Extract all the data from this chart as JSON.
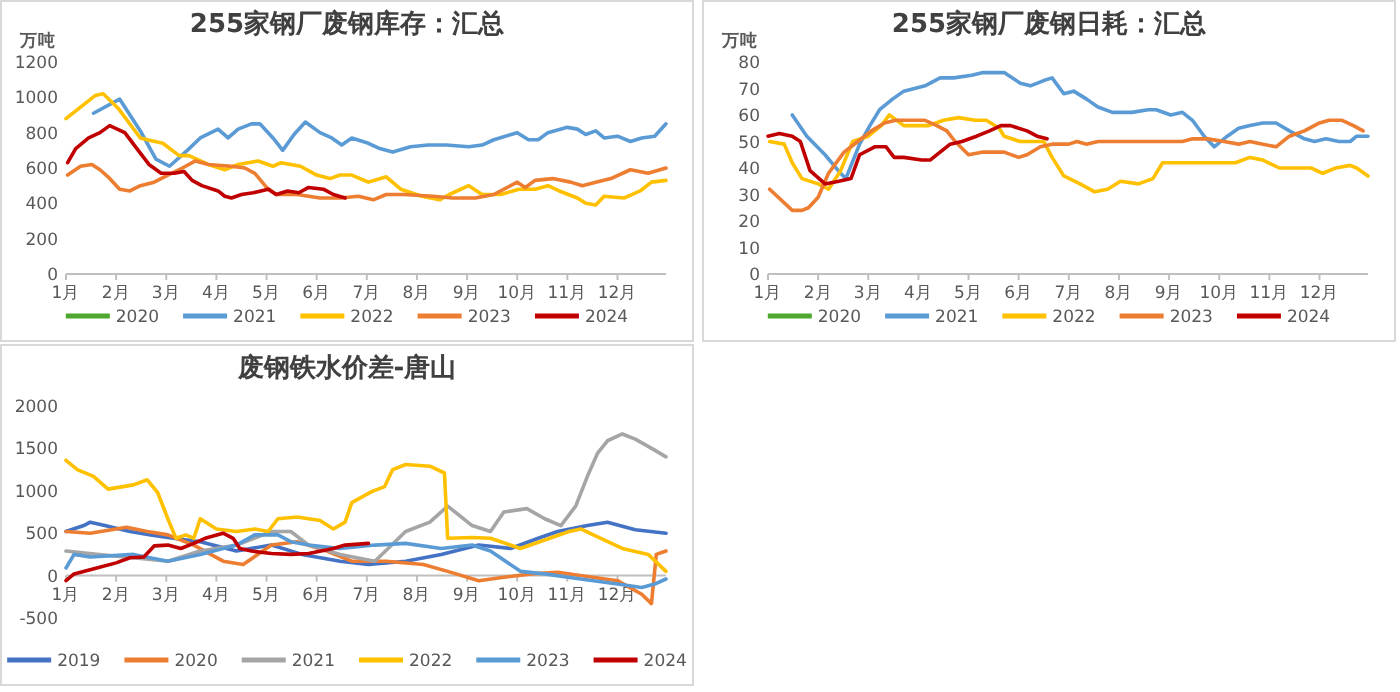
{
  "chart_data": [
    {
      "type": "line",
      "title": "255家钢厂废钢库存：汇总",
      "ylabel": "万吨",
      "legend": "bottom",
      "xlim": [
        "--01-01",
        "--12-31"
      ],
      "xticks": [
        {
          "value": "--01-01",
          "label": "1月"
        },
        {
          "value": "--02-01",
          "label": "2月"
        },
        {
          "value": "--03-01",
          "label": "3月"
        },
        {
          "value": "--04-01",
          "label": "4月"
        },
        {
          "value": "--05-01",
          "label": "5月"
        },
        {
          "value": "--06-01",
          "label": "6月"
        },
        {
          "value": "--07-01",
          "label": "7月"
        },
        {
          "value": "--08-01",
          "label": "8月"
        },
        {
          "value": "--09-01",
          "label": "9月"
        },
        {
          "value": "--10-01",
          "label": "10月"
        },
        {
          "value": "--11-01",
          "label": "11月"
        },
        {
          "value": "--12-01",
          "label": "12月"
        }
      ],
      "ylim": [
        0,
        1200
      ],
      "yticks": [
        0,
        200,
        400,
        600,
        800,
        1000,
        1200
      ],
      "series": [
        {
          "name": "2020",
          "color": "#4ea72e"
        },
        {
          "name": "2021",
          "color": "#5b9bd5",
          "x": [
            "--01-18",
            "--02-03",
            "--02-15",
            "--02-24",
            "--03-03",
            "--03-14",
            "--03-22",
            "--04-02",
            "--04-08",
            "--04-14",
            "--04-22",
            "--04-27",
            "--05-05",
            "--05-11",
            "--05-18",
            "--05-25",
            "--06-03",
            "--06-10",
            "--06-16",
            "--06-22",
            "--07-02",
            "--07-09",
            "--07-17",
            "--07-28",
            "--08-08",
            "--08-19",
            "--09-02",
            "--09-10",
            "--09-17",
            "--10-01",
            "--10-08",
            "--10-14",
            "--10-20",
            "--11-01",
            "--11-07",
            "--11-12",
            "--11-18",
            "--11-23",
            "--12-01",
            "--12-09",
            "--12-16",
            "--12-24",
            "--12-31"
          ],
          "values": [
            910,
            990,
            810,
            650,
            610,
            700,
            770,
            820,
            770,
            820,
            850,
            850,
            770,
            700,
            790,
            860,
            800,
            770,
            730,
            770,
            740,
            710,
            690,
            720,
            730,
            730,
            720,
            730,
            760,
            800,
            760,
            760,
            800,
            830,
            820,
            790,
            810,
            770,
            780,
            750,
            770,
            780,
            850
          ]
        },
        {
          "name": "2022",
          "color": "#ffc000",
          "x": [
            "--01-01",
            "--01-19",
            "--01-24",
            "--02-02",
            "--02-15",
            "--02-19",
            "--02-28",
            "--03-09",
            "--03-15",
            "--03-27",
            "--04-06",
            "--04-14",
            "--04-20",
            "--04-26",
            "--05-05",
            "--05-10",
            "--05-22",
            "--06-01",
            "--06-09",
            "--06-15",
            "--06-22",
            "--07-02",
            "--07-13",
            "--07-22",
            "--08-04",
            "--08-15",
            "--08-21",
            "--09-02",
            "--09-10",
            "--09-21",
            "--10-02",
            "--10-12",
            "--10-20",
            "--10-27",
            "--11-07",
            "--11-12",
            "--11-18",
            "--11-23",
            "--12-05",
            "--12-15",
            "--12-22",
            "--12-31"
          ],
          "values": [
            880,
            1010,
            1020,
            940,
            770,
            760,
            740,
            670,
            670,
            620,
            590,
            620,
            630,
            640,
            610,
            630,
            610,
            560,
            540,
            560,
            560,
            520,
            550,
            480,
            440,
            420,
            450,
            500,
            450,
            450,
            480,
            480,
            500,
            470,
            430,
            400,
            390,
            440,
            430,
            470,
            520,
            530
          ]
        },
        {
          "name": "2023",
          "color": "#ed7d31",
          "x": [
            "--01-02",
            "--01-10",
            "--01-17",
            "--01-22",
            "--01-27",
            "--02-03",
            "--02-09",
            "--02-15",
            "--02-23",
            "--03-02",
            "--03-11",
            "--03-19",
            "--03-27",
            "--04-10",
            "--04-18",
            "--04-24",
            "--05-01",
            "--05-07",
            "--05-12",
            "--05-20",
            "--06-03",
            "--06-15",
            "--06-26",
            "--07-05",
            "--07-13",
            "--07-24",
            "--08-11",
            "--08-23",
            "--09-06",
            "--09-17",
            "--10-01",
            "--10-06",
            "--10-12",
            "--10-23",
            "--11-03",
            "--11-10",
            "--11-18",
            "--11-27",
            "--12-09",
            "--12-20",
            "--12-31"
          ],
          "values": [
            560,
            610,
            620,
            590,
            550,
            480,
            470,
            500,
            520,
            560,
            600,
            640,
            620,
            610,
            600,
            570,
            490,
            450,
            450,
            450,
            430,
            430,
            440,
            420,
            450,
            450,
            440,
            430,
            430,
            450,
            520,
            490,
            530,
            540,
            520,
            500,
            520,
            540,
            590,
            570,
            600
          ]
        },
        {
          "name": "2024",
          "color": "#c00000",
          "x": [
            "--01-02",
            "--01-07",
            "--01-15",
            "--01-22",
            "--01-28",
            "--02-06",
            "--02-13",
            "--02-20",
            "--02-27",
            "--03-06",
            "--03-12",
            "--03-17",
            "--03-23",
            "--04-02",
            "--04-06",
            "--04-10",
            "--04-16",
            "--04-23",
            "--05-02",
            "--05-07",
            "--05-14",
            "--05-21",
            "--05-27",
            "--06-05",
            "--06-11",
            "--06-18"
          ],
          "values": [
            630,
            710,
            770,
            800,
            840,
            800,
            710,
            620,
            570,
            570,
            580,
            530,
            500,
            470,
            440,
            430,
            450,
            460,
            480,
            450,
            470,
            460,
            490,
            480,
            450,
            430
          ]
        }
      ]
    },
    {
      "type": "line",
      "title": "255家钢厂废钢日耗：汇总",
      "ylabel": "万吨",
      "legend": "bottom",
      "xlim": [
        "--01-01",
        "--12-31"
      ],
      "xticks": [
        {
          "value": "--01-01",
          "label": "1月"
        },
        {
          "value": "--02-01",
          "label": "2月"
        },
        {
          "value": "--03-01",
          "label": "3月"
        },
        {
          "value": "--04-01",
          "label": "4月"
        },
        {
          "value": "--05-01",
          "label": "5月"
        },
        {
          "value": "--06-01",
          "label": "6月"
        },
        {
          "value": "--07-01",
          "label": "7月"
        },
        {
          "value": "--08-01",
          "label": "8月"
        },
        {
          "value": "--09-01",
          "label": "9月"
        },
        {
          "value": "--10-01",
          "label": "10月"
        },
        {
          "value": "--11-01",
          "label": "11月"
        },
        {
          "value": "--12-01",
          "label": "12月"
        }
      ],
      "ylim": [
        0,
        80
      ],
      "yticks": [
        0,
        10,
        20,
        30,
        40,
        50,
        60,
        70,
        80
      ],
      "series": [
        {
          "name": "2020",
          "color": "#4ea72e"
        },
        {
          "name": "2021",
          "color": "#5b9bd5",
          "x": [
            "--01-16",
            "--01-25",
            "--02-05",
            "--02-14",
            "--02-17",
            "--02-25",
            "--03-02",
            "--03-08",
            "--03-16",
            "--03-23",
            "--04-05",
            "--04-14",
            "--04-22",
            "--05-03",
            "--05-10",
            "--05-18",
            "--05-23",
            "--06-02",
            "--06-08",
            "--06-16",
            "--06-21",
            "--06-28",
            "--07-04",
            "--07-12",
            "--07-19",
            "--07-28",
            "--08-09",
            "--08-19",
            "--08-24",
            "--09-02",
            "--09-09",
            "--09-15",
            "--09-22",
            "--09-28",
            "--10-06",
            "--10-13",
            "--10-20",
            "--10-28",
            "--11-05",
            "--11-13",
            "--11-22",
            "--11-28",
            "--12-05",
            "--12-13",
            "--12-20",
            "--12-24",
            "--12-31"
          ],
          "values": [
            60,
            52,
            45,
            38,
            36,
            49,
            56,
            62,
            66,
            69,
            71,
            74,
            74,
            75,
            76,
            76,
            76,
            72,
            71,
            73,
            74,
            68,
            69,
            66,
            63,
            61,
            61,
            62,
            62,
            60,
            61,
            58,
            52,
            48,
            52,
            55,
            56,
            57,
            57,
            54,
            51,
            50,
            51,
            50,
            50,
            52,
            52
          ]
        },
        {
          "name": "2022",
          "color": "#ffc000",
          "x": [
            "--01-02",
            "--01-11",
            "--01-16",
            "--01-22",
            "--02-01",
            "--02-07",
            "--02-14",
            "--02-21",
            "--03-01",
            "--03-09",
            "--03-14",
            "--03-23",
            "--04-07",
            "--04-16",
            "--04-25",
            "--05-05",
            "--05-12",
            "--05-20",
            "--05-23",
            "--06-02",
            "--06-10",
            "--06-16",
            "--06-21",
            "--06-28",
            "--07-08",
            "--07-17",
            "--07-25",
            "--08-02",
            "--08-13",
            "--08-22",
            "--08-28",
            "--09-09",
            "--09-19",
            "--10-02",
            "--10-11",
            "--10-20",
            "--10-28",
            "--11-07",
            "--11-20",
            "--11-26",
            "--12-03",
            "--12-11",
            "--12-20",
            "--12-24",
            "--12-31"
          ],
          "values": [
            50,
            49,
            42,
            36,
            34,
            32,
            39,
            50,
            52,
            56,
            60,
            56,
            56,
            58,
            59,
            58,
            58,
            55,
            52,
            50,
            50,
            50,
            44,
            37,
            34,
            31,
            32,
            35,
            34,
            36,
            42,
            42,
            42,
            42,
            42,
            44,
            43,
            40,
            40,
            40,
            38,
            40,
            41,
            40,
            37
          ]
        },
        {
          "name": "2023",
          "color": "#ed7d31",
          "x": [
            "--01-02",
            "--01-09",
            "--01-16",
            "--01-22",
            "--01-26",
            "--02-01",
            "--02-07",
            "--02-16",
            "--02-24",
            "--03-03",
            "--03-11",
            "--03-18",
            "--03-25",
            "--04-05",
            "--04-12",
            "--04-18",
            "--04-23",
            "--05-01",
            "--05-10",
            "--05-20",
            "--05-23",
            "--06-01",
            "--06-06",
            "--06-14",
            "--06-21",
            "--07-01",
            "--07-06",
            "--07-12",
            "--07-19",
            "--07-28",
            "--08-09",
            "--08-21",
            "--08-28",
            "--09-09",
            "--09-15",
            "--09-24",
            "--10-04",
            "--10-13",
            "--10-20",
            "--10-28",
            "--11-05",
            "--11-13",
            "--11-22",
            "--12-01",
            "--12-07",
            "--12-15",
            "--12-22",
            "--12-28"
          ],
          "values": [
            32,
            28,
            24,
            24,
            25,
            29,
            38,
            46,
            50,
            54,
            57,
            58,
            58,
            58,
            56,
            54,
            50,
            45,
            46,
            46,
            46,
            44,
            45,
            48,
            49,
            49,
            50,
            49,
            50,
            50,
            50,
            50,
            50,
            50,
            51,
            51,
            50,
            49,
            50,
            49,
            48,
            52,
            54,
            57,
            58,
            58,
            56,
            54
          ]
        },
        {
          "name": "2024",
          "color": "#c00000",
          "x": [
            "--01-01",
            "--01-08",
            "--01-16",
            "--01-21",
            "--01-27",
            "--02-05",
            "--02-13",
            "--02-20",
            "--02-25",
            "--03-05",
            "--03-12",
            "--03-17",
            "--03-23",
            "--04-03",
            "--04-08",
            "--04-14",
            "--04-20",
            "--04-27",
            "--05-06",
            "--05-14",
            "--05-21",
            "--05-27",
            "--06-06",
            "--06-12",
            "--06-18"
          ],
          "values": [
            52,
            53,
            52,
            50,
            39,
            34,
            35,
            36,
            45,
            48,
            48,
            44,
            44,
            43,
            43,
            46,
            49,
            50,
            52,
            54,
            56,
            56,
            54,
            52,
            51
          ]
        }
      ]
    },
    {
      "type": "line",
      "title": "废钢铁水价差-唐山",
      "legend": "bottom",
      "xlim": [
        "--01-01",
        "--12-31"
      ],
      "xticks": [
        {
          "value": "--01-01",
          "label": "1月"
        },
        {
          "value": "--02-01",
          "label": "2月"
        },
        {
          "value": "--03-01",
          "label": "3月"
        },
        {
          "value": "--04-01",
          "label": "4月"
        },
        {
          "value": "--05-01",
          "label": "5月"
        },
        {
          "value": "--06-01",
          "label": "6月"
        },
        {
          "value": "--07-01",
          "label": "7月"
        },
        {
          "value": "--08-01",
          "label": "8月"
        },
        {
          "value": "--09-01",
          "label": "9月"
        },
        {
          "value": "--10-01",
          "label": "10月"
        },
        {
          "value": "--11-01",
          "label": "11月"
        },
        {
          "value": "--12-01",
          "label": "12月"
        }
      ],
      "ylim": [
        -500,
        2000
      ],
      "yticks": [
        -500,
        0,
        500,
        1000,
        1500,
        2000
      ],
      "series": [
        {
          "name": "2019",
          "color": "#4472c4",
          "x": [
            "--01-01",
            "--01-12",
            "--01-16",
            "--01-25",
            "--02-09",
            "--02-21",
            "--03-02",
            "--03-22",
            "--04-13",
            "--05-04",
            "--05-23",
            "--06-15",
            "--07-02",
            "--07-25",
            "--08-16",
            "--09-08",
            "--09-27",
            "--10-14",
            "--10-26",
            "--11-13",
            "--11-25",
            "--12-12",
            "--12-31"
          ],
          "values": [
            520,
            590,
            630,
            590,
            520,
            480,
            450,
            400,
            290,
            360,
            250,
            170,
            130,
            170,
            250,
            360,
            320,
            440,
            520,
            590,
            630,
            540,
            500
          ]
        },
        {
          "name": "2020",
          "color": "#ed7d31",
          "x": [
            "--01-01",
            "--01-16",
            "--02-07",
            "--02-19",
            "--03-02",
            "--03-18",
            "--04-05",
            "--04-17",
            "--05-04",
            "--05-20",
            "--06-07",
            "--06-22",
            "--07-13",
            "--08-05",
            "--08-20",
            "--09-08",
            "--09-23",
            "--10-10",
            "--10-26",
            "--11-13",
            "--12-01",
            "--12-16",
            "--12-22",
            "--12-25",
            "--12-31"
          ],
          "values": [
            520,
            500,
            570,
            520,
            480,
            360,
            170,
            130,
            360,
            400,
            290,
            170,
            170,
            130,
            50,
            -60,
            -20,
            20,
            40,
            -10,
            -60,
            -220,
            -330,
            250,
            290
          ]
        },
        {
          "name": "2021",
          "color": "#a5a5a5",
          "x": [
            "--01-01",
            "--01-20",
            "--02-11",
            "--03-02",
            "--03-22",
            "--04-13",
            "--05-04",
            "--05-16",
            "--05-27",
            "--06-15",
            "--07-06",
            "--07-25",
            "--08-09",
            "--08-20",
            "--09-04",
            "--09-15",
            "--09-23",
            "--10-07",
            "--10-18",
            "--10-28",
            "--11-06",
            "--11-13",
            "--11-19",
            "--11-25",
            "--12-04",
            "--12-12",
            "--12-24",
            "--12-31"
          ],
          "values": [
            290,
            250,
            210,
            170,
            290,
            360,
            520,
            520,
            360,
            250,
            170,
            520,
            630,
            820,
            590,
            520,
            750,
            790,
            670,
            590,
            820,
            1170,
            1440,
            1590,
            1670,
            1610,
            1480,
            1400
          ]
        },
        {
          "name": "2022",
          "color": "#ffc000",
          "x": [
            "--01-01",
            "--01-08",
            "--01-18",
            "--01-27",
            "--02-11",
            "--02-19",
            "--02-25",
            "--03-02",
            "--03-07",
            "--03-13",
            "--03-18",
            "--03-22",
            "--04-01",
            "--04-13",
            "--04-24",
            "--05-02",
            "--05-08",
            "--05-20",
            "--06-03",
            "--06-11",
            "--06-18",
            "--06-22",
            "--07-04",
            "--07-12",
            "--07-17",
            "--07-25",
            "--08-09",
            "--08-18",
            "--08-20",
            "--09-04",
            "--09-15",
            "--10-03",
            "--10-18",
            "--11-02",
            "--11-09",
            "--11-21",
            "--12-04",
            "--12-20",
            "--12-31"
          ],
          "values": [
            1360,
            1250,
            1170,
            1020,
            1070,
            1130,
            980,
            670,
            440,
            480,
            440,
            670,
            550,
            520,
            550,
            520,
            670,
            690,
            650,
            550,
            630,
            860,
            990,
            1050,
            1250,
            1310,
            1290,
            1210,
            440,
            450,
            440,
            320,
            420,
            520,
            550,
            440,
            320,
            250,
            50
          ]
        },
        {
          "name": "2023",
          "color": "#5b9bd5",
          "x": [
            "--01-01",
            "--01-06",
            "--01-16",
            "--02-11",
            "--03-02",
            "--03-22",
            "--04-13",
            "--04-24",
            "--05-08",
            "--05-16",
            "--05-27",
            "--06-15",
            "--07-06",
            "--07-25",
            "--08-16",
            "--09-04",
            "--09-15",
            "--10-03",
            "--10-18",
            "--11-09",
            "--12-01",
            "--12-16",
            "--12-24",
            "--12-31"
          ],
          "values": [
            90,
            250,
            220,
            250,
            170,
            250,
            360,
            480,
            480,
            400,
            360,
            320,
            360,
            380,
            320,
            360,
            290,
            50,
            20,
            -40,
            -100,
            -140,
            -100,
            -40
          ]
        },
        {
          "name": "2024",
          "color": "#c00000",
          "x": [
            "--01-01",
            "--01-06",
            "--01-20",
            "--02-01",
            "--02-09",
            "--02-17",
            "--02-23",
            "--03-02",
            "--03-10",
            "--03-18",
            "--03-25",
            "--04-05",
            "--04-11",
            "--04-15",
            "--04-22",
            "--05-04",
            "--05-16",
            "--05-27",
            "--06-11",
            "--06-18",
            "--07-02"
          ],
          "values": [
            -60,
            20,
            90,
            150,
            210,
            220,
            350,
            360,
            320,
            380,
            440,
            500,
            440,
            320,
            290,
            260,
            250,
            260,
            320,
            360,
            380
          ]
        }
      ]
    }
  ]
}
